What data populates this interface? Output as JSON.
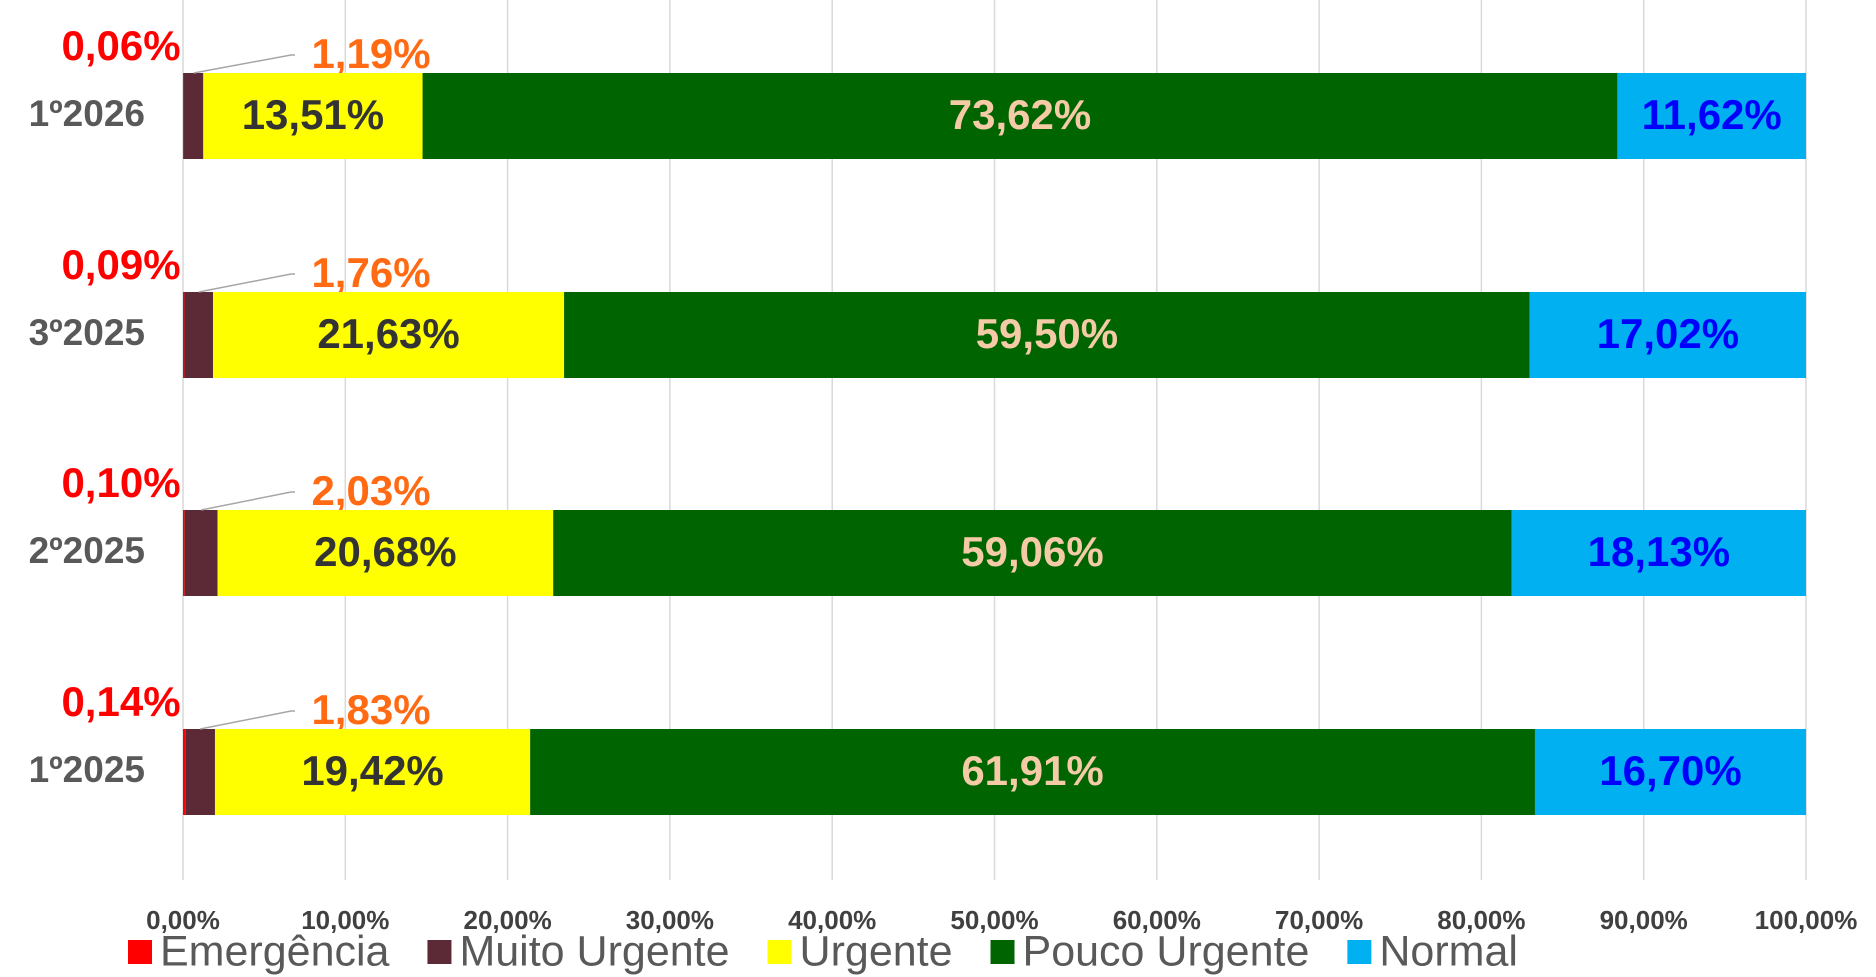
{
  "chart_data": {
    "type": "stacked-barh",
    "categories": [
      "1º2026",
      "3º2025",
      "2º2025",
      "1º2025"
    ],
    "series": [
      {
        "name": "Emergência",
        "color": "#ff0000",
        "label_color": "#ff0000",
        "values": [
          0.06,
          0.09,
          0.1,
          0.14
        ],
        "value_labels": [
          "0,06%",
          "0,09%",
          "0,10%",
          "0,14%"
        ]
      },
      {
        "name": "Muito Urgente",
        "color": "#5c2a36",
        "label_color": "#ff6a13",
        "values": [
          1.19,
          1.76,
          2.03,
          1.83
        ],
        "value_labels": [
          "1,19%",
          "1,76%",
          "2,03%",
          "1,83%"
        ]
      },
      {
        "name": "Urgente",
        "color": "#ffff00",
        "label_color": "#333333",
        "values": [
          13.51,
          21.63,
          20.68,
          19.42
        ],
        "value_labels": [
          "13,51%",
          "21,63%",
          "20,68%",
          "19,42%"
        ]
      },
      {
        "name": "Pouco Urgente",
        "color": "#006400",
        "label_color": "#f5cba7",
        "values": [
          73.62,
          59.5,
          59.06,
          61.91
        ],
        "value_labels": [
          "73,62%",
          "59,50%",
          "59,06%",
          "61,91%"
        ]
      },
      {
        "name": "Normal",
        "color": "#00b0f0",
        "label_color": "#0000ff",
        "values": [
          11.62,
          17.02,
          18.13,
          16.7
        ],
        "value_labels": [
          "11,62%",
          "17,02%",
          "18,13%",
          "16,70%"
        ]
      }
    ],
    "xlim": [
      0,
      100
    ],
    "xticks": [
      {
        "value": 0,
        "label": "0,00%"
      },
      {
        "value": 10,
        "label": "10,00%"
      },
      {
        "value": 20,
        "label": "20,00%"
      },
      {
        "value": 30,
        "label": "30,00%"
      },
      {
        "value": 40,
        "label": "40,00%"
      },
      {
        "value": 50,
        "label": "50,00%"
      },
      {
        "value": 60,
        "label": "60,00%"
      },
      {
        "value": 70,
        "label": "70,00%"
      },
      {
        "value": 80,
        "label": "80,00%"
      },
      {
        "value": 90,
        "label": "90,00%"
      },
      {
        "value": 100,
        "label": "100,00%"
      }
    ],
    "grid": true,
    "legend": "bottom"
  }
}
